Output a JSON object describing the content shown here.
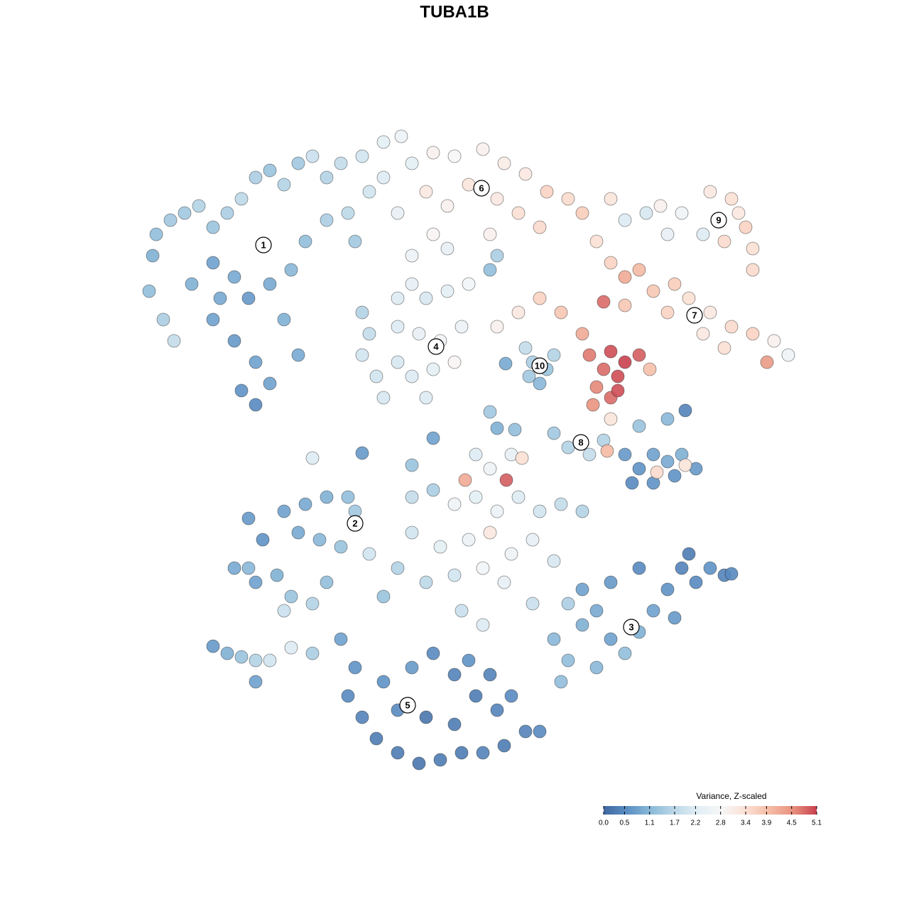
{
  "chart_data": {
    "type": "scatter",
    "title": "TUBA1B",
    "colorbar_title": "Variance, Z-scaled",
    "clim": [
      0,
      5.1
    ],
    "cticks": [
      {
        "value": 0,
        "label": "0.0"
      },
      0.5,
      1.1,
      1.7,
      2.2,
      2.8,
      3.4,
      3.9,
      4.5,
      5.1
    ],
    "colorscale": [
      "#3f67a0",
      "#5b8fc4",
      "#8bbad9",
      "#bcd8e8",
      "#e2eef5",
      "#f7f7f7",
      "#fbe0d4",
      "#f5bca5",
      "#e8917e",
      "#c9404f"
    ],
    "cluster_labels": [
      {
        "text": "1",
        "x": 37.1,
        "y": -34.5
      },
      {
        "text": "2",
        "x": 50,
        "y": -73.7
      },
      {
        "text": "3",
        "x": 88.9,
        "y": -88.3
      },
      {
        "text": "4",
        "x": 61.4,
        "y": -48.8
      },
      {
        "text": "5",
        "x": 57.4,
        "y": -99.3
      },
      {
        "text": "6",
        "x": 67.8,
        "y": -26.5
      },
      {
        "text": "7",
        "x": 97.8,
        "y": -44.4
      },
      {
        "text": "8",
        "x": 81.8,
        "y": -62.3
      },
      {
        "text": "9",
        "x": 101.2,
        "y": -31
      },
      {
        "text": "10",
        "x": 76,
        "y": -51.5
      }
    ],
    "x": [
      22,
      24,
      21.5,
      21,
      23,
      24.5,
      26,
      28,
      30,
      32,
      34,
      36,
      38,
      40,
      42,
      44,
      46,
      48,
      30,
      33,
      35,
      38,
      41,
      30,
      33,
      36,
      34,
      38,
      31,
      40,
      43,
      46,
      49,
      52,
      50,
      27,
      42,
      36,
      54,
      56.5,
      58,
      61,
      64,
      68,
      71,
      74,
      77,
      80,
      60,
      63,
      66,
      70,
      73,
      76,
      56,
      61,
      69,
      82,
      54,
      51,
      88,
      91,
      94,
      96,
      99,
      100,
      103,
      105,
      106,
      102,
      93,
      104,
      86,
      106,
      84,
      86,
      88,
      90,
      92,
      95,
      97,
      100,
      103,
      106,
      109,
      111,
      102,
      99,
      94,
      88,
      76,
      79,
      73,
      70,
      82,
      85,
      108,
      83,
      86,
      88,
      90,
      85,
      87,
      84,
      86,
      83.5,
      87,
      91.5,
      86,
      51,
      52,
      51,
      53,
      54,
      56,
      58,
      60,
      63,
      56,
      59,
      62,
      65,
      64,
      61,
      58,
      60,
      56,
      58,
      63,
      66,
      69,
      70,
      74,
      75,
      77,
      76,
      78,
      74.5,
      71.2,
      78,
      80,
      83,
      85,
      88,
      90,
      92,
      94,
      96,
      98,
      89,
      92,
      95,
      92.5,
      96.5,
      85.5,
      90,
      94,
      96.5,
      72,
      73.5,
      69,
      71.3,
      65.5,
      67,
      44,
      51,
      58,
      61,
      70,
      72.5,
      69,
      35,
      37,
      40,
      43,
      46,
      49,
      50,
      42,
      45,
      48,
      33,
      36,
      39,
      41,
      40,
      44,
      46,
      52,
      35,
      58,
      61,
      64,
      67,
      70,
      73,
      76,
      79,
      82,
      58,
      62,
      66,
      69,
      72,
      75,
      78,
      64,
      68,
      71,
      60,
      56,
      54,
      68,
      65,
      75,
      80,
      78,
      80,
      82,
      84,
      86,
      88,
      90,
      92,
      94,
      96,
      98,
      100,
      102,
      95,
      90,
      86,
      82,
      79,
      84,
      97,
      103,
      48,
      50,
      49,
      51,
      53,
      56,
      59,
      62,
      65,
      68,
      71,
      74,
      76,
      54,
      58,
      61,
      64,
      67,
      70,
      56,
      60,
      64,
      72,
      66,
      69,
      30,
      32,
      34,
      36,
      38,
      36,
      41,
      44
    ],
    "y": [
      -33,
      -31,
      -36,
      -41,
      -45,
      -48,
      -30,
      -29,
      -32,
      -30,
      -28,
      -25,
      -24,
      -26,
      -23,
      -22,
      -25,
      -23,
      -37,
      -39,
      -42,
      -40,
      -38,
      -45,
      -48,
      -51,
      -55,
      -54,
      -42,
      -45,
      -34,
      -31,
      -30,
      -27,
      -34,
      -40,
      -50,
      -57,
      -20,
      -19.2,
      -23,
      -21.5,
      -22,
      -21,
      -23,
      -24.5,
      -27,
      -28,
      -27,
      -29,
      -26,
      -28,
      -30,
      -32,
      -30,
      -33,
      -33,
      -30,
      -25,
      -22,
      -31,
      -30,
      -33,
      -30,
      -33,
      -27,
      -28,
      -32,
      -35,
      -34,
      -29,
      -30,
      -28,
      -38,
      -34,
      -37,
      -39,
      -38,
      -41,
      -40,
      -42,
      -44,
      -46,
      -47,
      -48,
      -50,
      -49,
      -47,
      -44,
      -43,
      -42,
      -44,
      -44,
      -46,
      -47,
      -42.5,
      -51,
      -50,
      -49.5,
      -51,
      -50,
      -52,
      -53,
      -54.5,
      -56,
      -57,
      -55,
      -52,
      -59,
      -44,
      -47,
      -50,
      -53,
      -56,
      -42,
      -40,
      -42,
      -41,
      -46,
      -47,
      -48,
      -46,
      -51,
      -52,
      -53,
      -56,
      -51,
      -36,
      -35,
      -40,
      -38,
      -36,
      -49,
      -51,
      -52,
      -54,
      -50,
      -53,
      -51.2,
      -61,
      -63,
      -64,
      -62,
      -64,
      -66,
      -64,
      -65,
      -64,
      -66,
      -68,
      -68,
      -67,
      -66.5,
      -65.5,
      -63.5,
      -60,
      -59,
      -57.8,
      -64,
      -64.5,
      -66,
      -67.6,
      -67.6,
      -64,
      -64.5,
      -63.8,
      -65.5,
      -61.7,
      -60.3,
      -60.5,
      -58,
      -73,
      -76,
      -72,
      -71,
      -70,
      -70,
      -72,
      -75,
      -76,
      -77,
      -80,
      -82,
      -81,
      -84,
      -86,
      -85,
      -82,
      -78,
      -80,
      -70,
      -69,
      -71,
      -70,
      -72,
      -70,
      -72,
      -71,
      -72,
      -75,
      -77,
      -76,
      -75,
      -78,
      -76,
      -79,
      -81,
      -80,
      -82,
      -82,
      -80,
      -84,
      -88,
      -86,
      -85,
      -85,
      -90,
      -93,
      -88,
      -86,
      -90,
      -92,
      -89,
      -86,
      -83,
      -80,
      -82,
      -80,
      -81,
      -87,
      -80,
      -82,
      -83,
      -96,
      -94,
      -78,
      -80.8,
      -90,
      -94,
      -98,
      -101,
      -104,
      -106,
      -107.5,
      -107,
      -106,
      -106,
      -105,
      -103,
      -103,
      -96,
      -94,
      -92,
      -95,
      -98,
      -100,
      -100,
      -101,
      -102,
      -98,
      -93,
      -95,
      -91,
      -92,
      -92.5,
      -93,
      -93,
      -96,
      -91.2,
      -92
    ],
    "values": [
      1.2,
      1.4,
      1.0,
      1.2,
      1.5,
      1.8,
      1.4,
      1.6,
      1.3,
      1.5,
      1.7,
      1.5,
      1.3,
      1.6,
      1.4,
      1.9,
      1.6,
      1.8,
      0.8,
      0.9,
      0.7,
      0.9,
      1.1,
      0.8,
      0.7,
      0.8,
      0.6,
      0.8,
      0.9,
      1.0,
      1.2,
      1.5,
      1.7,
      2.0,
      1.4,
      1.0,
      0.9,
      0.5,
      2.3,
      2.5,
      2.3,
      3.0,
      2.8,
      3.0,
      3.1,
      3.2,
      3.6,
      3.5,
      3.2,
      3.0,
      3.3,
      3.2,
      3.4,
      3.5,
      2.4,
      2.9,
      3.0,
      3.7,
      2.2,
      2.0,
      2.2,
      2.1,
      2.4,
      2.6,
      2.2,
      3.2,
      3.4,
      3.6,
      3.4,
      3.5,
      3.0,
      3.2,
      3.3,
      3.5,
      3.4,
      3.6,
      4.2,
      4.0,
      3.8,
      3.7,
      3.4,
      3.2,
      3.5,
      3.6,
      3.0,
      2.6,
      3.4,
      3.2,
      3.6,
      3.8,
      3.6,
      3.8,
      3.2,
      3.0,
      4.2,
      4.8,
      4.4,
      4.7,
      5.0,
      5.1,
      4.9,
      4.8,
      5.0,
      4.6,
      4.8,
      4.5,
      5.0,
      3.9,
      3.3,
      1.6,
      1.8,
      2.0,
      2.0,
      2.1,
      2.2,
      2.4,
      2.1,
      2.3,
      2.2,
      2.4,
      2.6,
      2.5,
      2.9,
      2.3,
      2.2,
      2.2,
      2.1,
      2.5,
      2.4,
      2.7,
      1.2,
      1.5,
      1.8,
      1.5,
      1.3,
      1.1,
      1.6,
      1.4,
      0.9,
      1.4,
      1.6,
      1.8,
      1.6,
      0.7,
      0.6,
      0.8,
      0.9,
      1.0,
      0.7,
      0.5,
      0.6,
      0.6,
      3.5,
      3.3,
      4.0,
      1.3,
      1.1,
      0.4,
      2.4,
      3.4,
      2.6,
      4.9,
      4.2,
      2.2,
      2.2,
      0.7,
      1.3,
      0.8,
      1.0,
      1.2,
      1.4,
      0.7,
      0.6,
      0.8,
      0.9,
      1.0,
      1.2,
      1.4,
      0.9,
      1.1,
      1.3,
      0.9,
      0.8,
      1.0,
      1.3,
      1.9,
      1.6,
      1.2,
      2.0,
      1.1,
      1.8,
      1.5,
      2.6,
      2.3,
      2.5,
      2.2,
      2.0,
      1.8,
      1.6,
      2.0,
      2.3,
      2.5,
      3.2,
      2.6,
      2.4,
      2.1,
      2.0,
      2.7,
      2.4,
      1.7,
      1.6,
      1.3,
      2.2,
      1.9,
      1.9,
      1.5,
      1.1,
      1.2,
      1.0,
      0.9,
      0.8,
      1.2,
      1.0,
      0.8,
      0.6,
      0.4,
      0.5,
      0.6,
      0.4,
      0.7,
      0.5,
      0.7,
      0.8,
      1.2,
      1.1,
      0.3,
      0.5,
      0.8,
      0.6,
      0.5,
      0.4,
      0.3,
      0.3,
      0.2,
      0.3,
      0.3,
      0.4,
      0.3,
      0.4,
      0.5,
      0.6,
      0.7,
      0.5,
      0.4,
      0.3,
      0.4,
      0.5,
      0.2,
      0.3,
      0.5,
      0.6,
      0.4,
      0.7,
      1.0,
      1.3,
      1.6,
      2.0,
      0.8,
      2.2,
      1.5
    ]
  }
}
